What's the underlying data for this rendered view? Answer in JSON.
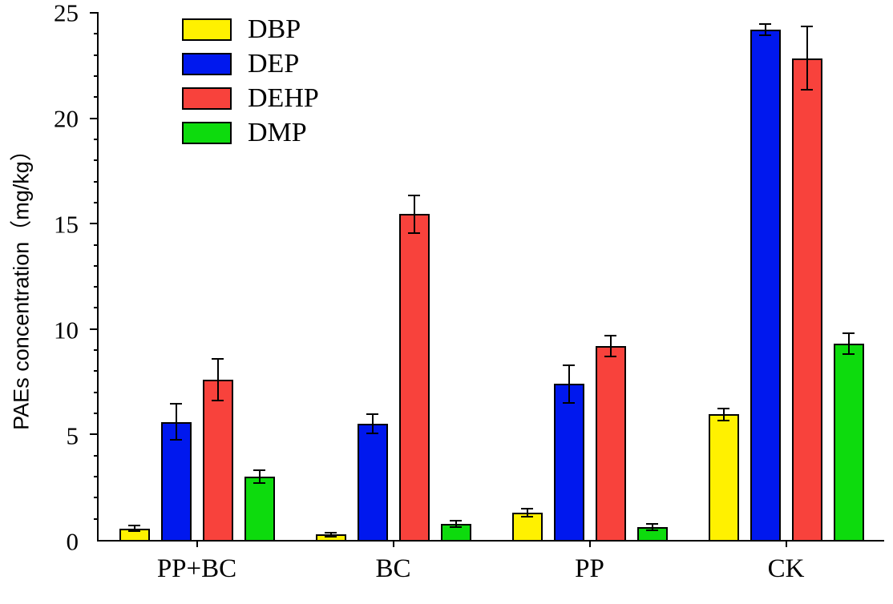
{
  "chart_data": {
    "type": "bar",
    "title": "",
    "xlabel": "",
    "ylabel": "PAEs concentration（mg/kg）",
    "ylim": [
      0,
      25
    ],
    "yticks": [
      0,
      5,
      10,
      15,
      20,
      25
    ],
    "minor_tick_step": 1,
    "grid": false,
    "legend_position": "top-left",
    "categories": [
      "PP+BC",
      "BC",
      "PP",
      "CK"
    ],
    "series": [
      {
        "name": "DBP",
        "color": "#FFF100",
        "values": [
          0.55,
          0.25,
          1.3,
          5.95
        ],
        "errors": [
          0.15,
          0.08,
          0.2,
          0.3
        ]
      },
      {
        "name": "DEP",
        "color": "#0018EE",
        "values": [
          5.6,
          5.5,
          7.4,
          24.2
        ],
        "errors": [
          0.85,
          0.45,
          0.9,
          0.25
        ]
      },
      {
        "name": "DEHP",
        "color": "#F8423C",
        "values": [
          7.6,
          15.45,
          9.2,
          22.85
        ],
        "errors": [
          1.0,
          0.9,
          0.5,
          1.5
        ]
      },
      {
        "name": "DMP",
        "color": "#0DDB0D",
        "values": [
          3.0,
          0.75,
          0.6,
          9.3
        ],
        "errors": [
          0.3,
          0.15,
          0.15,
          0.5
        ]
      }
    ]
  },
  "colors": {
    "axis": "#000000",
    "bar_border": "#000000",
    "error_bar": "#000000",
    "background": "#ffffff"
  }
}
